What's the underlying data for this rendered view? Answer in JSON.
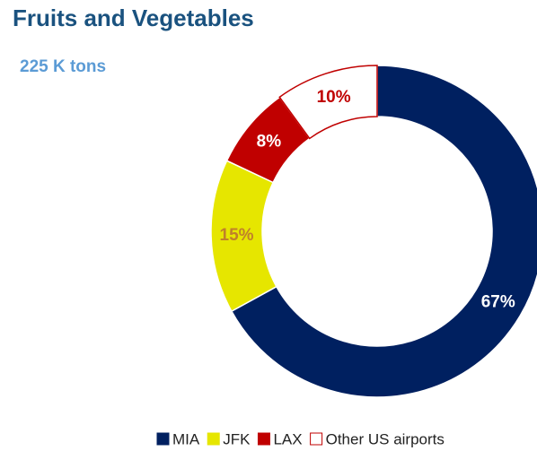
{
  "chart_data": {
    "type": "donut",
    "title": "Fruits and Vegetables",
    "subtitle": "225 K tons",
    "categories": [
      "MIA",
      "JFK",
      "LAX",
      "Other US airports"
    ],
    "values": [
      67,
      15,
      8,
      10
    ],
    "value_labels": [
      "67%",
      "15%",
      "8%",
      "10%"
    ],
    "colors": [
      "#002060",
      "#e6e600",
      "#c00000",
      "#ffffff"
    ],
    "stroke_colors": [
      "#ffffff",
      "#ffffff",
      "#ffffff",
      "#c00000"
    ],
    "label_colors": [
      "#ffffff",
      "#c0802a",
      "#ffffff",
      "#c00000"
    ],
    "legend": "bottom"
  }
}
